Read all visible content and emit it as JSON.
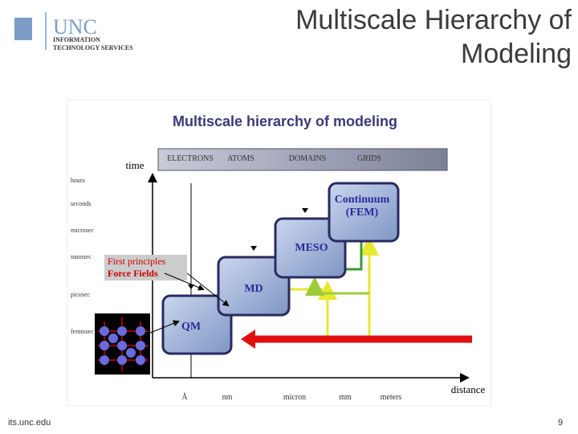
{
  "header": {
    "logo": "UNC",
    "org_lines": [
      "INFORMATION",
      "TECHNOLOGY SERVICES"
    ],
    "title_lines": [
      "Multiscale Hierarchy of",
      "Modeling"
    ]
  },
  "figure": {
    "title": "Multiscale hierarchy of modeling",
    "y_label": "time",
    "x_label": "distance",
    "bands": [
      "ELECTRONS",
      "ATOMS",
      "DOMAINS",
      "GRIDS"
    ],
    "time_ticks": [
      "hours",
      "seconds",
      "microsec",
      "nanosec",
      "picosec",
      "femtosec"
    ],
    "distance_ticks": [
      "Å",
      "nm",
      "micron",
      "mm",
      "meters"
    ],
    "boxes": [
      "QM",
      "MD",
      "MESO",
      [
        "Continuum",
        "(FEM)"
      ]
    ],
    "callout": [
      "First principles",
      "Force Fields"
    ]
  },
  "footer": {
    "url": "its.unc.edu",
    "page": "9"
  }
}
